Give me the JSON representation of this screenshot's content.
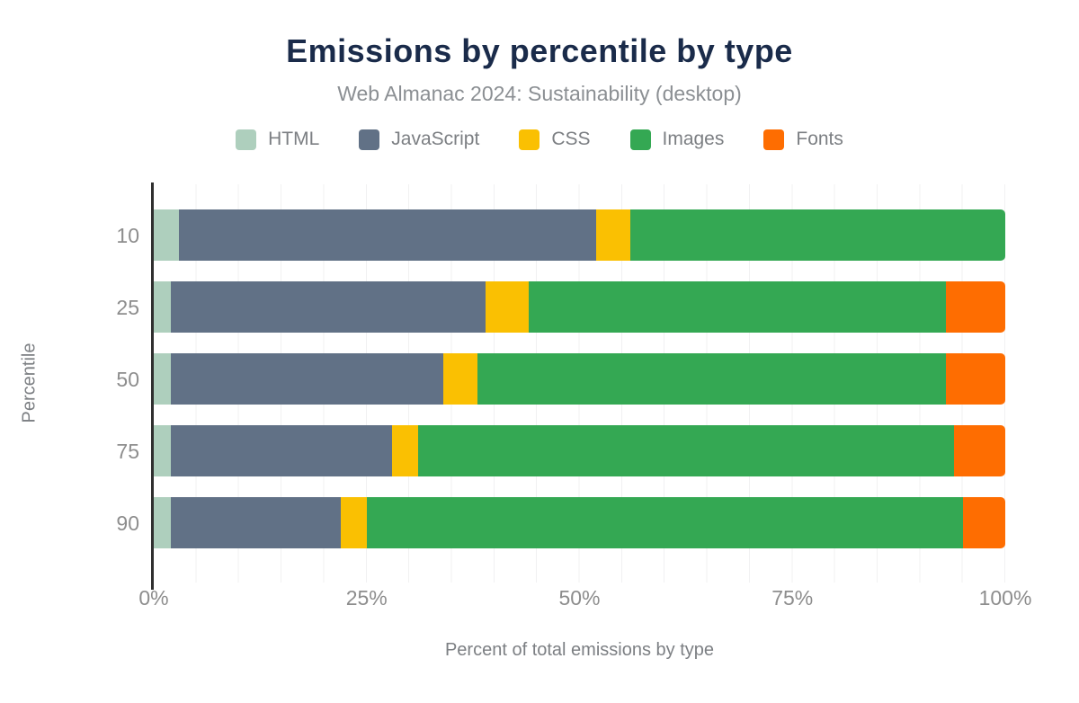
{
  "figure": {
    "title": "Emissions by percentile by type",
    "subtitle": "Web Almanac 2024: Sustainability (desktop)",
    "title_color": "#1a2b4a",
    "background": "#ffffff"
  },
  "chart_data": {
    "type": "bar",
    "orientation": "horizontal",
    "stacked": true,
    "title": "Emissions by percentile by type",
    "subtitle": "Web Almanac 2024: Sustainability (desktop)",
    "xlabel": "Percent of total emissions by type",
    "ylabel": "Percentile",
    "categories": [
      "10",
      "25",
      "50",
      "75",
      "90"
    ],
    "series": [
      {
        "name": "HTML",
        "color": "#aecfbd",
        "values": [
          3,
          2,
          2,
          2,
          2
        ]
      },
      {
        "name": "JavaScript",
        "color": "#617186",
        "values": [
          49,
          37,
          32,
          26,
          20
        ]
      },
      {
        "name": "CSS",
        "color": "#fac002",
        "values": [
          4,
          5,
          4,
          3,
          3
        ]
      },
      {
        "name": "Images",
        "color": "#34a853",
        "values": [
          44,
          49,
          55,
          63,
          70
        ]
      },
      {
        "name": "Fonts",
        "color": "#fe6d01",
        "values": [
          0,
          7,
          7,
          6,
          5
        ]
      }
    ],
    "x_ticks": [
      "0%",
      "25%",
      "50%",
      "75%",
      "100%"
    ],
    "xlim": [
      0,
      100
    ],
    "grid": "vertical gridlines every 5%",
    "legend_position": "top",
    "axis_color": "#2f2f2f",
    "gridline_color": "#f1f1f2",
    "tick_label_color": "#8d8d8d",
    "axis_title_color": "#7c7f83"
  }
}
